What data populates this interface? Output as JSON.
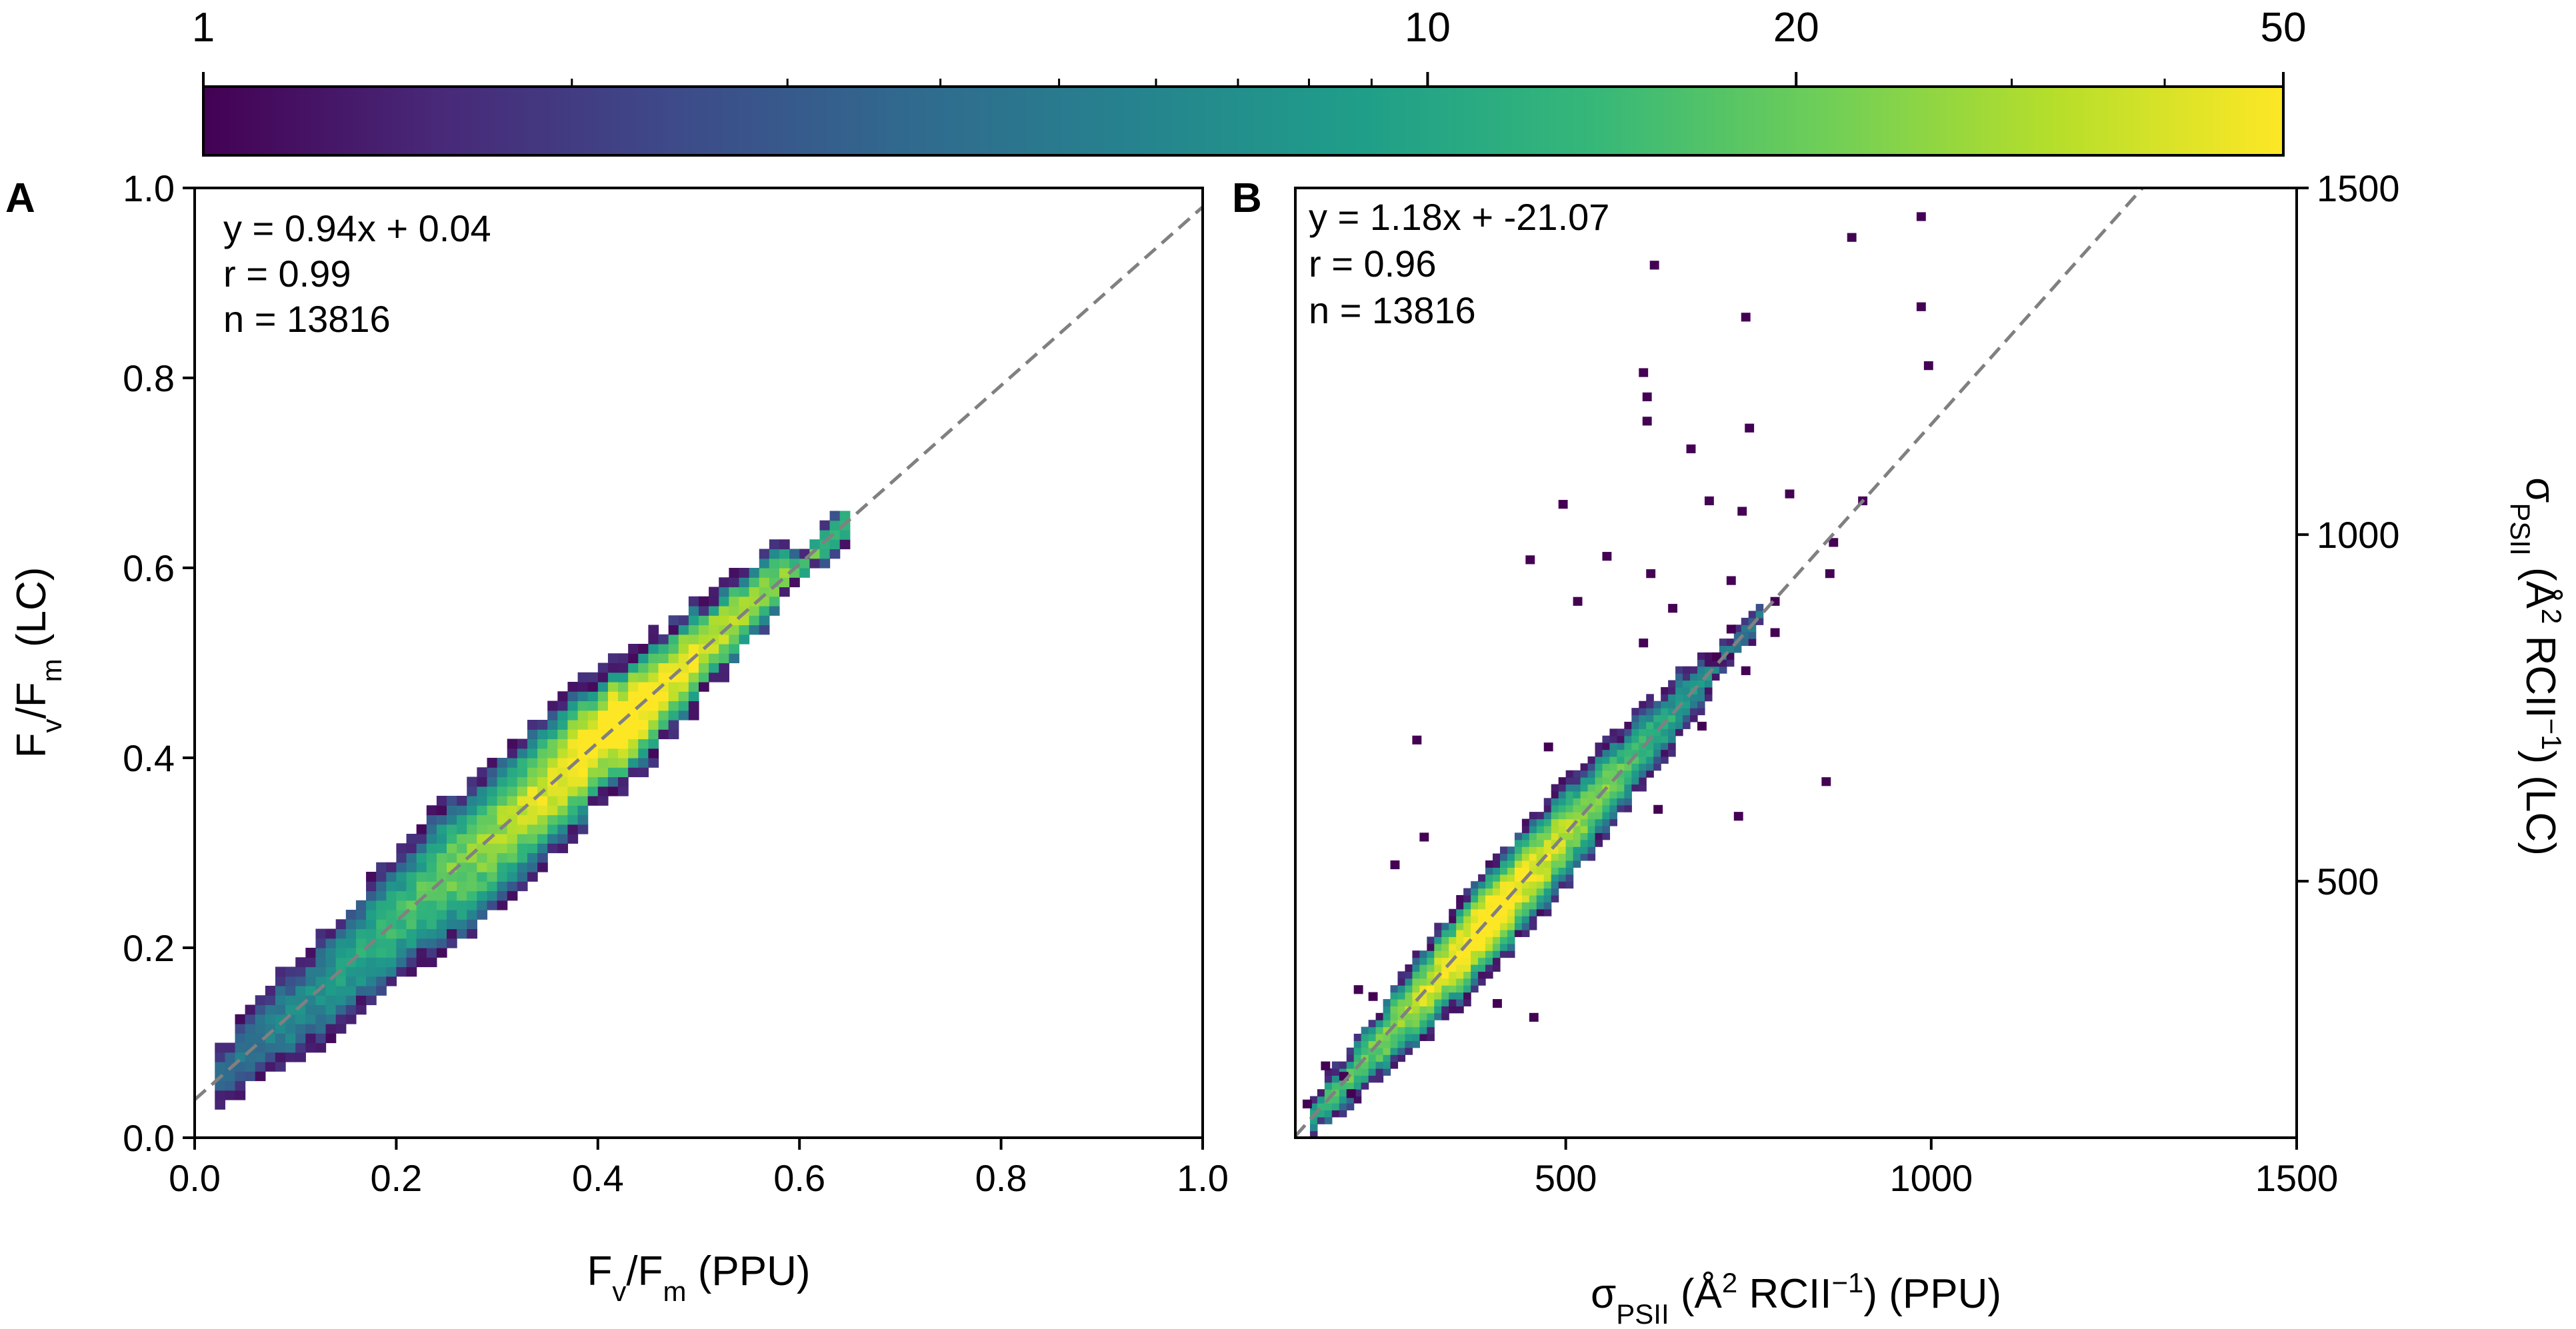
{
  "colorbar": {
    "scale": "log",
    "range": [
      1,
      50
    ],
    "ticks": [
      {
        "value": 1,
        "label": "1"
      },
      {
        "value": 10,
        "label": "10"
      },
      {
        "value": 20,
        "label": "20"
      },
      {
        "value": 50,
        "label": "50"
      }
    ],
    "minor_ticks": [
      2,
      3,
      4,
      5,
      6,
      7,
      8,
      9,
      30,
      40
    ],
    "colormap": "viridis",
    "stops": [
      "#440154",
      "#482878",
      "#3e4989",
      "#31688e",
      "#26828e",
      "#1f9e89",
      "#35b779",
      "#6ece58",
      "#b5de2b",
      "#fde725"
    ]
  },
  "chart_data": [
    {
      "type": "heatmap",
      "panel_label": "A",
      "xlabel": {
        "base": "F",
        "sub1": "v",
        "mid": "/F",
        "sub2": "m",
        "tail": " (PPU)"
      },
      "ylabel": {
        "base": "F",
        "sub1": "v",
        "mid": "/F",
        "sub2": "m",
        "tail": " (LC)"
      },
      "xlim": [
        0.0,
        1.0
      ],
      "ylim": [
        0.0,
        1.0
      ],
      "xticks": [
        "0.0",
        "0.2",
        "0.4",
        "0.6",
        "0.8",
        "1.0"
      ],
      "yticks": [
        "0.0",
        "0.2",
        "0.4",
        "0.6",
        "0.8",
        "1.0"
      ],
      "annotations": [
        "y = 0.94x + 0.04",
        "r = 0.99",
        "n = 13816"
      ],
      "fit_line": {
        "slope": 0.94,
        "intercept": 0.04
      },
      "bin_size": 0.01,
      "density_ridge": {
        "slope": 0.94,
        "intercept": 0.04,
        "x_range": [
          0.02,
          0.65
        ],
        "peak_x": 0.42
      },
      "outliers": []
    },
    {
      "type": "heatmap",
      "panel_label": "B",
      "xlabel": {
        "base": "σ",
        "sub": "PSII",
        "pre_sup": " (Å",
        "sup1": "2",
        "mid": "  RCII",
        "sup2": "−1",
        "tail": ") (PPU)"
      },
      "ylabel": {
        "base": "σ",
        "sub": "PSII",
        "pre_sup": " (Å",
        "sup1": "2",
        "mid": "  RCII",
        "sup2": "−1",
        "tail": ") (LC)"
      },
      "xlim": [
        130,
        1500
      ],
      "ylim": [
        130,
        1500
      ],
      "xticks": [
        "500",
        "1000",
        "1500"
      ],
      "yticks": [
        "500",
        "1000",
        "1500"
      ],
      "annotations": [
        "y = 1.18x + -21.07",
        "r = 0.96",
        "n = 13816"
      ],
      "fit_line": {
        "slope": 1.18,
        "intercept": -21.07
      },
      "bin_size": 10,
      "density_ridge": {
        "slope": 1.18,
        "intercept": -21.07,
        "x_range": [
          150,
          760
        ],
        "peak_x": 390
      },
      "outliers": [
        [
          980,
          1455
        ],
        [
          885,
          1425
        ],
        [
          615,
          1385
        ],
        [
          740,
          1310
        ],
        [
          980,
          1325
        ],
        [
          990,
          1240
        ],
        [
          600,
          1230
        ],
        [
          605,
          1195
        ],
        [
          605,
          1160
        ],
        [
          745,
          1150
        ],
        [
          665,
          1120
        ],
        [
          800,
          1055
        ],
        [
          490,
          1040
        ],
        [
          690,
          1045
        ],
        [
          735,
          1030
        ],
        [
          900,
          1045
        ],
        [
          860,
          985
        ],
        [
          550,
          965
        ],
        [
          855,
          940
        ],
        [
          445,
          960
        ],
        [
          610,
          940
        ],
        [
          720,
          930
        ],
        [
          780,
          900
        ],
        [
          510,
          900
        ],
        [
          640,
          890
        ],
        [
          720,
          860
        ],
        [
          600,
          840
        ],
        [
          700,
          820
        ],
        [
          740,
          800
        ],
        [
          680,
          720
        ],
        [
          290,
          700
        ],
        [
          470,
          690
        ],
        [
          850,
          640
        ],
        [
          730,
          590
        ],
        [
          300,
          560
        ],
        [
          260,
          520
        ],
        [
          620,
          600
        ],
        [
          400,
          320
        ],
        [
          450,
          300
        ],
        [
          210,
          340
        ],
        [
          165,
          230
        ],
        [
          200,
          190
        ],
        [
          140,
          175
        ],
        [
          190,
          215
        ],
        [
          230,
          330
        ],
        [
          780,
          855
        ]
      ]
    }
  ]
}
